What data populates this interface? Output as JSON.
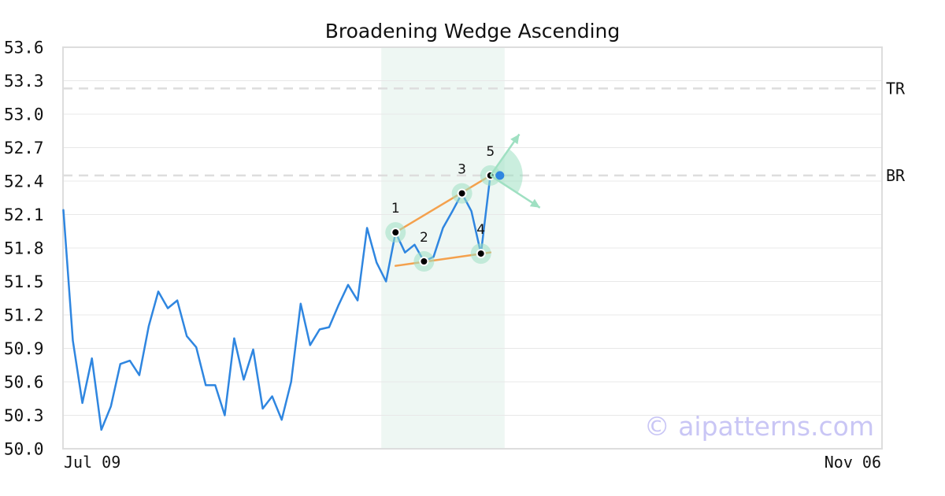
{
  "chart_data": {
    "type": "line",
    "title": "Broadening Wedge Ascending",
    "watermark": "© aipatterns.com",
    "ylim": [
      50.0,
      53.6
    ],
    "yticks": [
      "50.0",
      "50.3",
      "50.6",
      "50.9",
      "51.2",
      "51.5",
      "51.8",
      "52.1",
      "52.4",
      "52.7",
      "53.0",
      "53.3",
      "53.6"
    ],
    "x_start_label": "Jul 09",
    "x_end_label": "Nov 06",
    "n_slots": 88,
    "grid": true,
    "series": [
      {
        "values": [
          52.14,
          50.97,
          50.41,
          50.81,
          50.17,
          50.38,
          50.76,
          50.79,
          50.66,
          51.1,
          51.41,
          51.26,
          51.33,
          51.01,
          50.91,
          50.57,
          50.57,
          50.3,
          50.99,
          50.62,
          50.89,
          50.36,
          50.47,
          50.26,
          50.6,
          51.3,
          50.93,
          51.07,
          51.09,
          51.29,
          51.47,
          51.33,
          51.98,
          51.67,
          51.5,
          51.94,
          51.76,
          51.83,
          51.68,
          51.72,
          51.98,
          52.13,
          52.29,
          52.13,
          51.75,
          52.46,
          52.45
        ],
        "color": "#2f86e0"
      }
    ],
    "levels": [
      {
        "label": "TR",
        "value": 53.23
      },
      {
        "label": "BR",
        "value": 52.45
      }
    ],
    "pattern_zone": {
      "start_index": 33.5,
      "end_index": 46.5
    },
    "pivots": [
      {
        "label": "1",
        "index": 35,
        "value": 51.94
      },
      {
        "label": "2",
        "index": 38,
        "value": 51.68
      },
      {
        "label": "3",
        "index": 42,
        "value": 52.29
      },
      {
        "label": "4",
        "index": 44,
        "value": 51.75
      },
      {
        "label": "5",
        "index": 45,
        "value": 52.45
      }
    ],
    "trend_lines": [
      {
        "from_index": 35,
        "from_value": 51.94,
        "to_index": 45,
        "to_value": 52.45
      },
      {
        "from_index": 35,
        "from_value": 51.64,
        "to_index": 45,
        "to_value": 51.76
      }
    ],
    "breakout": {
      "index": 46,
      "value": 52.45
    },
    "colors": {
      "line": "#2f86e0",
      "trend": "#f4a14d",
      "pivot_halo": "#9fe0c2",
      "zone": "#eef7f3",
      "level": "#dddddd",
      "grid": "#e8e8e8",
      "frame": "#dddddd",
      "breakout": "#2f86e0",
      "arrows": "#9fe0c2"
    }
  }
}
